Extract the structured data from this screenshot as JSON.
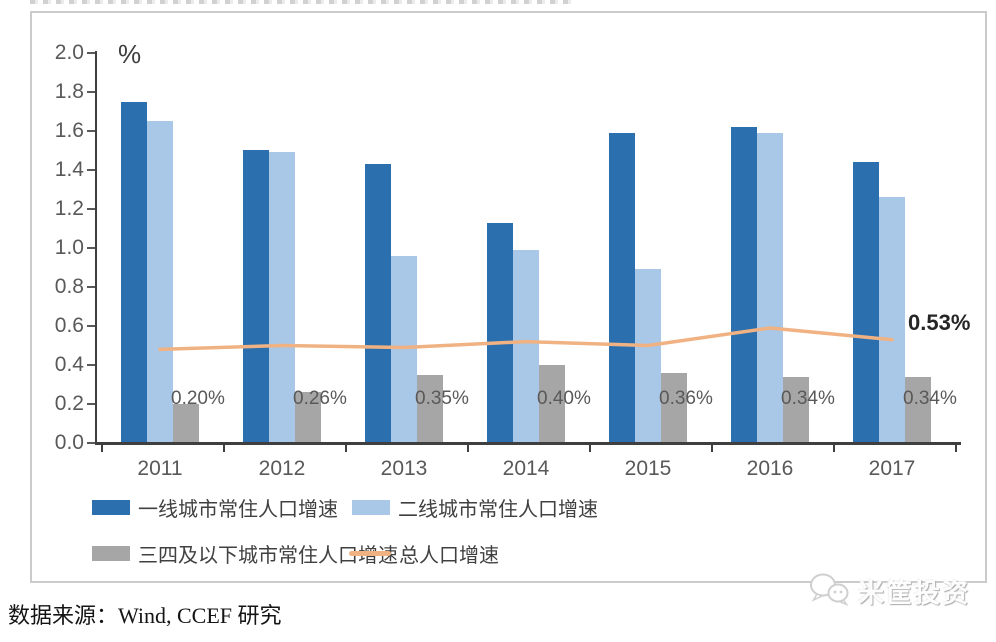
{
  "chart_data": {
    "type": "bar",
    "unit_label": "%",
    "categories": [
      "2011",
      "2012",
      "2013",
      "2014",
      "2015",
      "2016",
      "2017"
    ],
    "ylim": [
      0,
      2.0
    ],
    "ytick_step": 0.2,
    "ytick_labels": [
      "0.0",
      "0.2",
      "0.4",
      "0.6",
      "0.8",
      "1.0",
      "1.2",
      "1.4",
      "1.6",
      "1.8",
      "2.0"
    ],
    "grid": false,
    "legend_position": "bottom",
    "series": [
      {
        "name": "一线城市常住人口增速",
        "kind": "bar",
        "color": "#2C6FAF",
        "values": [
          1.75,
          1.5,
          1.43,
          1.13,
          1.59,
          1.62,
          1.44
        ]
      },
      {
        "name": "二线城市常住人口增速",
        "kind": "bar",
        "color": "#A9C7E6",
        "values": [
          1.65,
          1.49,
          0.96,
          0.99,
          0.89,
          1.59,
          1.26
        ]
      },
      {
        "name": "三四及以下城市常住人口增速",
        "kind": "bar",
        "color": "#A6A6A6",
        "values": [
          0.2,
          0.26,
          0.35,
          0.4,
          0.36,
          0.34,
          0.34
        ],
        "data_labels": [
          "0.20%",
          "0.26%",
          "0.35%",
          "0.40%",
          "0.36%",
          "0.34%",
          "0.34%"
        ]
      },
      {
        "name": "总人口增速",
        "kind": "line",
        "color": "#F0B283",
        "values": [
          0.48,
          0.5,
          0.49,
          0.52,
          0.5,
          0.59,
          0.53
        ],
        "end_label": "0.53%"
      }
    ]
  },
  "footer": {
    "source": "数据来源：Wind, CCEF 研究"
  },
  "watermark": {
    "text": "米筐投资",
    "icon": "wechat-chat-bubbles-icon"
  }
}
